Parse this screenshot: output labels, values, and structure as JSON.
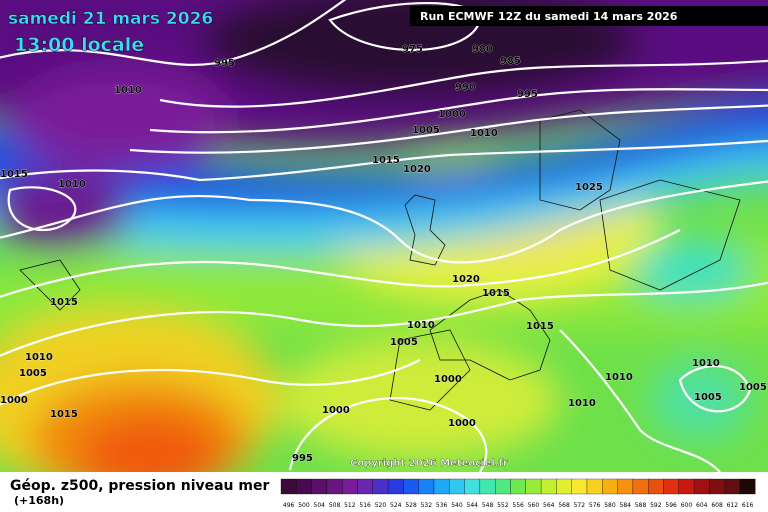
{
  "header": {
    "date": "samedi 21 mars 2026",
    "time": "13:00 locale",
    "run": "Run ECMWF 12Z du samedi 14 mars 2026"
  },
  "isobar_labels": [
    "995",
    "975",
    "980",
    "985",
    "990",
    "995",
    "1010",
    "1000",
    "1005",
    "1010",
    "1015",
    "1020",
    "1015",
    "1010",
    "1025",
    "1020",
    "1015",
    "1015",
    "1015",
    "1010",
    "1005",
    "1010",
    "1005",
    "1000",
    "1010",
    "1010",
    "1005",
    "1000",
    "1005",
    "1010",
    "1015",
    "1000",
    "1000",
    "995"
  ],
  "copyright": "Copyright 2026 Meteociel.fr",
  "footer": {
    "title": "Géop. z500, pression niveau mer",
    "lead": "(+168h)"
  },
  "scale": {
    "labels": [
      "496",
      "500",
      "504",
      "508",
      "512",
      "516",
      "520",
      "524",
      "528",
      "532",
      "536",
      "540",
      "544",
      "548",
      "552",
      "556",
      "560",
      "564",
      "568",
      "572",
      "576",
      "580",
      "584",
      "588",
      "592",
      "596",
      "600",
      "604",
      "608",
      "612",
      "616"
    ]
  }
}
